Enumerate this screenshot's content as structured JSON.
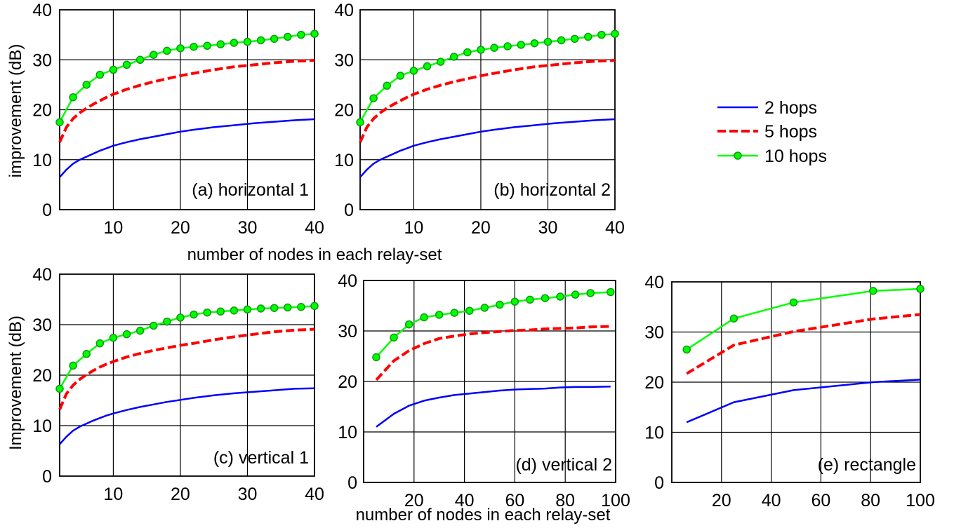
{
  "figure": {
    "ylabel_top": "improvement (dB)",
    "ylabel_bottom": "Improvement (dB)",
    "xlabel_top": "number of nodes in each relay-set",
    "xlabel_bottom": "number of nodes in each relay-set"
  },
  "legend": {
    "placement": "right of top row",
    "entries": [
      {
        "label": "2 hops",
        "color": "#0000ff",
        "style": "solid"
      },
      {
        "label": "5 hops",
        "color": "#ff0000",
        "style": "dashed"
      },
      {
        "label": "10 hops",
        "color": "#00ff00",
        "style": "solid-with-circle-markers"
      }
    ]
  },
  "chart_data": [
    {
      "type": "line",
      "label": "(a) horizontal 1",
      "xlim": [
        2,
        40
      ],
      "ylim": [
        0,
        40
      ],
      "xticks": [
        10,
        20,
        30,
        40
      ],
      "yticks": [
        0,
        10,
        20,
        30,
        40
      ],
      "grid": true,
      "series": [
        {
          "name": "2 hops",
          "x": [
            2,
            3,
            4,
            5,
            6,
            7,
            8,
            9,
            10,
            12,
            14,
            16,
            18,
            20,
            22,
            25,
            28,
            31,
            34,
            37,
            40
          ],
          "y": [
            6.5,
            8,
            9.2,
            10,
            10.6,
            11.2,
            11.8,
            12.3,
            12.8,
            13.5,
            14.1,
            14.6,
            15.1,
            15.6,
            16,
            16.5,
            16.9,
            17.3,
            17.6,
            17.9,
            18.1
          ]
        },
        {
          "name": "5 hops",
          "x": [
            2,
            3,
            4,
            5,
            6,
            7,
            8,
            9,
            10,
            12,
            14,
            16,
            18,
            20,
            22,
            25,
            28,
            31,
            34,
            37,
            40
          ],
          "y": [
            13.5,
            16.5,
            18.2,
            19.4,
            20.3,
            21.1,
            21.8,
            22.5,
            23.1,
            24.1,
            24.9,
            25.6,
            26.2,
            26.8,
            27.3,
            28,
            28.6,
            29,
            29.4,
            29.7,
            29.9
          ]
        },
        {
          "name": "10 hops",
          "x": [
            2,
            4,
            6,
            8,
            10,
            12,
            14,
            16,
            18,
            20,
            22,
            24,
            26,
            28,
            30,
            32,
            34,
            36,
            38,
            40
          ],
          "y": [
            17.5,
            22.5,
            25,
            27,
            28,
            29,
            30,
            31,
            31.8,
            32.3,
            32.6,
            32.8,
            33.1,
            33.4,
            33.6,
            33.9,
            34.2,
            34.6,
            35,
            35.2
          ]
        }
      ]
    },
    {
      "type": "line",
      "label": "(b) horizontal 2",
      "xlim": [
        2,
        40
      ],
      "ylim": [
        0,
        40
      ],
      "xticks": [
        10,
        20,
        30,
        40
      ],
      "yticks": [
        0,
        10,
        20,
        30,
        40
      ],
      "grid": true,
      "series": [
        {
          "name": "2 hops",
          "x": [
            2,
            3,
            4,
            5,
            6,
            7,
            8,
            9,
            10,
            12,
            14,
            16,
            18,
            20,
            22,
            25,
            28,
            31,
            34,
            37,
            40
          ],
          "y": [
            6.5,
            8,
            9.2,
            10,
            10.6,
            11.2,
            11.8,
            12.3,
            12.8,
            13.5,
            14.1,
            14.6,
            15.1,
            15.6,
            16,
            16.5,
            16.9,
            17.3,
            17.6,
            17.9,
            18.1
          ]
        },
        {
          "name": "5 hops",
          "x": [
            2,
            3,
            4,
            5,
            6,
            7,
            8,
            9,
            10,
            12,
            14,
            16,
            18,
            20,
            22,
            25,
            28,
            31,
            34,
            37,
            40
          ],
          "y": [
            13.5,
            16.5,
            18.2,
            19.4,
            20.3,
            21.1,
            21.8,
            22.5,
            23.1,
            24.1,
            24.9,
            25.6,
            26.2,
            26.8,
            27.3,
            28,
            28.6,
            29,
            29.4,
            29.7,
            29.9
          ]
        },
        {
          "name": "10 hops",
          "x": [
            2,
            4,
            6,
            8,
            10,
            12,
            14,
            16,
            18,
            20,
            22,
            24,
            26,
            28,
            30,
            32,
            34,
            36,
            38,
            40
          ],
          "y": [
            17.5,
            22.3,
            24.8,
            26.8,
            27.8,
            28.7,
            29.6,
            30.6,
            31.5,
            32,
            32.4,
            32.7,
            33,
            33.3,
            33.6,
            33.9,
            34.2,
            34.6,
            35,
            35.2
          ]
        }
      ]
    },
    {
      "type": "line",
      "label": "(c) vertical 1",
      "xlim": [
        2,
        40
      ],
      "ylim": [
        0,
        40
      ],
      "xticks": [
        10,
        20,
        30,
        40
      ],
      "yticks": [
        0,
        10,
        20,
        30,
        40
      ],
      "grid": true,
      "series": [
        {
          "name": "2 hops",
          "x": [
            2,
            3,
            4,
            5,
            6,
            7,
            8,
            9,
            10,
            12,
            14,
            16,
            18,
            20,
            22,
            25,
            28,
            31,
            34,
            37,
            40
          ],
          "y": [
            6.3,
            7.8,
            9,
            9.8,
            10.4,
            11,
            11.5,
            12,
            12.4,
            13.1,
            13.7,
            14.2,
            14.7,
            15.1,
            15.5,
            16,
            16.4,
            16.7,
            17,
            17.3,
            17.4
          ]
        },
        {
          "name": "5 hops",
          "x": [
            2,
            3,
            4,
            5,
            6,
            7,
            8,
            9,
            10,
            12,
            14,
            16,
            18,
            20,
            22,
            25,
            28,
            31,
            34,
            37,
            40
          ],
          "y": [
            13.2,
            16.3,
            18,
            19.2,
            20.1,
            20.9,
            21.6,
            22.2,
            22.7,
            23.6,
            24.3,
            24.9,
            25.4,
            25.9,
            26.3,
            27,
            27.6,
            28.1,
            28.6,
            28.9,
            29.1
          ]
        },
        {
          "name": "10 hops",
          "x": [
            2,
            4,
            6,
            8,
            10,
            12,
            14,
            16,
            18,
            20,
            22,
            24,
            26,
            28,
            30,
            32,
            34,
            36,
            38,
            40
          ],
          "y": [
            17.3,
            21.9,
            24.2,
            26.3,
            27.4,
            28.1,
            28.8,
            29.8,
            30.6,
            31.4,
            32,
            32.4,
            32.6,
            32.8,
            33,
            33.2,
            33.3,
            33.4,
            33.5,
            33.7
          ]
        }
      ]
    },
    {
      "type": "line",
      "label": "(d) vertical 2",
      "xlim": [
        0,
        100
      ],
      "ylim": [
        0,
        40
      ],
      "xticks": [
        20,
        40,
        60,
        80,
        100
      ],
      "yticks": [
        0,
        10,
        20,
        30,
        40
      ],
      "grid": true,
      "series": [
        {
          "name": "2 hops",
          "x": [
            5,
            12,
            18,
            24,
            30,
            36,
            42,
            48,
            54,
            60,
            66,
            72,
            78,
            84,
            90,
            98
          ],
          "y": [
            11,
            13.6,
            15.2,
            16.2,
            16.8,
            17.3,
            17.6,
            17.9,
            18.2,
            18.4,
            18.5,
            18.6,
            18.8,
            18.9,
            18.9,
            19
          ]
        },
        {
          "name": "5 hops",
          "x": [
            5,
            12,
            18,
            24,
            30,
            36,
            42,
            48,
            54,
            60,
            66,
            72,
            78,
            84,
            90,
            98
          ],
          "y": [
            20.3,
            24.1,
            26.1,
            27.5,
            28.5,
            29,
            29.4,
            29.7,
            29.9,
            30.1,
            30.2,
            30.4,
            30.5,
            30.6,
            30.8,
            30.9
          ]
        },
        {
          "name": "10 hops",
          "x": [
            5,
            12,
            18,
            24,
            30,
            36,
            42,
            48,
            54,
            60,
            66,
            72,
            78,
            84,
            90,
            98
          ],
          "y": [
            24.8,
            28.7,
            31.3,
            32.7,
            33.2,
            33.6,
            34,
            34.6,
            35.2,
            35.8,
            36.2,
            36.5,
            36.8,
            37.2,
            37.5,
            37.7
          ]
        }
      ]
    },
    {
      "type": "line",
      "label": "(e) rectangle",
      "xlim": [
        0,
        100
      ],
      "ylim": [
        0,
        40
      ],
      "xticks": [
        20,
        40,
        60,
        80,
        100
      ],
      "yticks": [
        0,
        10,
        20,
        30,
        40
      ],
      "grid": true,
      "series": [
        {
          "name": "2 hops",
          "x": [
            6,
            25,
            49,
            81,
            100
          ],
          "y": [
            12,
            16,
            18.4,
            20,
            20.5
          ]
        },
        {
          "name": "5 hops",
          "x": [
            6,
            25,
            49,
            81,
            100
          ],
          "y": [
            21.7,
            27.4,
            30.1,
            32.6,
            33.5
          ]
        },
        {
          "name": "10 hops",
          "x": [
            6,
            25,
            49,
            81,
            100
          ],
          "y": [
            26.5,
            32.7,
            35.9,
            38.2,
            38.6
          ]
        }
      ]
    }
  ]
}
